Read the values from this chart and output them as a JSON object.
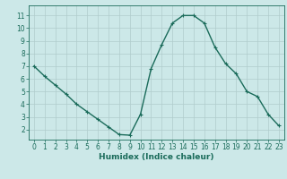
{
  "x": [
    0,
    1,
    2,
    3,
    4,
    5,
    6,
    7,
    8,
    9,
    10,
    11,
    12,
    13,
    14,
    15,
    16,
    17,
    18,
    19,
    20,
    21,
    22,
    23
  ],
  "y": [
    7.0,
    6.2,
    5.5,
    4.8,
    4.0,
    3.4,
    2.8,
    2.2,
    1.6,
    1.55,
    3.2,
    6.8,
    8.7,
    10.4,
    11.0,
    11.0,
    10.4,
    8.5,
    7.2,
    6.4,
    5.0,
    4.6,
    3.2,
    2.3
  ],
  "line_color": "#1a6b5a",
  "marker": "+",
  "marker_size": 3,
  "background_color": "#cce8e8",
  "grid_color": "#b0cccc",
  "xlabel": "Humidex (Indice chaleur)",
  "xlim": [
    -0.5,
    23.5
  ],
  "ylim": [
    1.2,
    11.8
  ],
  "yticks": [
    2,
    3,
    4,
    5,
    6,
    7,
    8,
    9,
    10,
    11
  ],
  "xticks": [
    0,
    1,
    2,
    3,
    4,
    5,
    6,
    7,
    8,
    9,
    10,
    11,
    12,
    13,
    14,
    15,
    16,
    17,
    18,
    19,
    20,
    21,
    22,
    23
  ],
  "xlabel_fontsize": 6.5,
  "tick_fontsize": 5.5,
  "linewidth": 1.0,
  "marker_linewidth": 0.8
}
